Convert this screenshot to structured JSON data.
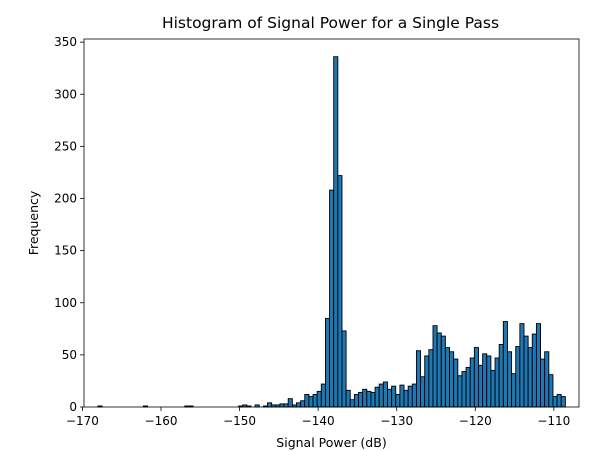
{
  "chart_data": {
    "type": "bar",
    "subtype": "histogram",
    "title": "Histogram of Signal Power for a Single Pass",
    "xlabel": "Signal Power (dB)",
    "ylabel": "Frequency",
    "xlim": [
      -169.8,
      -106.8
    ],
    "ylim": [
      0,
      353
    ],
    "x_ticks": [
      -170,
      -160,
      -150,
      -140,
      -130,
      -120,
      -110
    ],
    "x_tick_labels": [
      "−170",
      "−160",
      "−150",
      "−140",
      "−130",
      "−120",
      "−110"
    ],
    "y_ticks": [
      0,
      50,
      100,
      150,
      200,
      250,
      300,
      350
    ],
    "y_tick_labels": [
      "0",
      "50",
      "100",
      "150",
      "200",
      "250",
      "300",
      "350"
    ],
    "grid": false,
    "legend": "none",
    "bar_color": "#1f77b4",
    "edge_color": "#000000",
    "bin_start": -168.03,
    "bin_width": 0.5265,
    "counts": [
      1,
      0,
      0,
      0,
      0,
      0,
      0,
      0,
      0,
      0,
      0,
      1,
      0,
      0,
      0,
      0,
      0,
      0,
      0,
      0,
      0,
      1,
      1,
      0,
      0,
      0,
      0,
      0,
      0,
      0,
      0,
      0,
      0,
      0,
      1,
      2,
      1,
      0,
      2,
      0,
      1,
      4,
      2,
      2,
      3,
      3,
      8,
      2,
      4,
      6,
      12,
      10,
      12,
      15,
      22,
      85,
      208,
      336,
      222,
      73,
      16,
      7,
      12,
      14,
      17,
      15,
      14,
      19,
      22,
      24,
      17,
      20,
      12,
      21,
      16,
      20,
      22,
      54,
      29,
      49,
      55,
      78,
      71,
      68,
      57,
      53,
      46,
      30,
      34,
      38,
      47,
      57,
      40,
      51,
      49,
      35,
      47,
      60,
      82,
      53,
      32,
      58,
      80,
      68,
      57,
      70,
      80,
      46,
      53,
      31,
      10,
      12,
      10
    ]
  }
}
